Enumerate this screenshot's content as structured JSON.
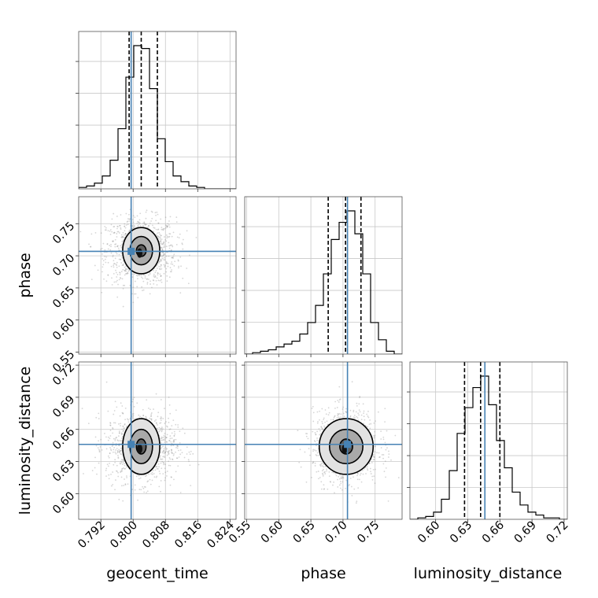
{
  "chart_data": {
    "type": "corner",
    "parameters": [
      "geocent_time",
      "phase",
      "luminosity_distance"
    ],
    "labels": {
      "geocent_time": "geocent_time",
      "phase": "phase",
      "luminosity_distance": "luminosity_distance"
    },
    "axes": {
      "geocent_time": {
        "lim": [
          0.7865,
          0.8255
        ],
        "ticks": [
          "0.792",
          "0.800",
          "0.808",
          "0.816",
          "0.824"
        ],
        "tick_values": [
          0.792,
          0.8,
          0.808,
          0.816,
          0.824
        ]
      },
      "phase": {
        "lim": [
          0.547,
          0.792
        ],
        "ticks": [
          "0.55",
          "0.60",
          "0.65",
          "0.70",
          "0.75"
        ],
        "tick_values": [
          0.55,
          0.6,
          0.65,
          0.7,
          0.75
        ]
      },
      "luminosity_distance": {
        "lim": [
          0.576,
          0.723
        ],
        "ticks": [
          "0.60",
          "0.63",
          "0.66",
          "0.69",
          "0.72"
        ],
        "tick_values": [
          0.6,
          0.63,
          0.66,
          0.69,
          0.72
        ]
      }
    },
    "truths": {
      "geocent_time": 0.7995,
      "phase": 0.707,
      "luminosity_distance": 0.646
    },
    "quantiles": {
      "geocent_time": [
        0.799,
        0.802,
        0.806
      ],
      "phase": [
        0.677,
        0.704,
        0.728
      ],
      "luminosity_distance": [
        0.627,
        0.642,
        0.66
      ]
    },
    "histograms": {
      "geocent_time": {
        "edges_start": 0.7865,
        "bin_width": 0.00195,
        "counts": [
          1,
          2,
          4,
          9,
          20,
          42,
          78,
          100,
          98,
          70,
          35,
          19,
          9,
          5,
          2,
          1,
          0,
          0,
          0,
          0
        ]
      },
      "phase": {
        "edges_start": 0.547,
        "bin_width": 0.01225,
        "counts": [
          0,
          1,
          2,
          3,
          5,
          7,
          9,
          14,
          22,
          34,
          56,
          80,
          92,
          100,
          84,
          56,
          22,
          10,
          2,
          0
        ]
      },
      "luminosity_distance": {
        "edges_start": 0.576,
        "bin_width": 0.00735,
        "counts": [
          0,
          1,
          2,
          5,
          14,
          34,
          60,
          78,
          92,
          100,
          80,
          55,
          36,
          19,
          10,
          5,
          3,
          1,
          1,
          0
        ]
      }
    },
    "pairs": [
      {
        "x": "geocent_time",
        "y": "phase",
        "center": [
          0.802,
          0.708
        ],
        "sigma": [
          0.0032,
          0.019
        ],
        "contours": [
          [
            0.0012,
            0.009
          ],
          [
            0.0028,
            0.022
          ],
          [
            0.0046,
            0.036
          ]
        ]
      },
      {
        "x": "geocent_time",
        "y": "luminosity_distance",
        "center": [
          0.802,
          0.644
        ],
        "sigma": [
          0.0032,
          0.0125
        ],
        "contours": [
          [
            0.0012,
            0.007
          ],
          [
            0.0028,
            0.016
          ],
          [
            0.0046,
            0.026
          ]
        ]
      },
      {
        "x": "phase",
        "y": "luminosity_distance",
        "center": [
          0.705,
          0.644
        ],
        "sigma": [
          0.019,
          0.0125
        ],
        "contours": [
          [
            0.01,
            0.007
          ],
          [
            0.026,
            0.016
          ],
          [
            0.042,
            0.026
          ]
        ]
      }
    ],
    "grid": true
  },
  "colors": {
    "truth": "#4682b4",
    "line": "#000000",
    "grid": "#c8c8c8",
    "scatter": "#8a8a8a"
  }
}
